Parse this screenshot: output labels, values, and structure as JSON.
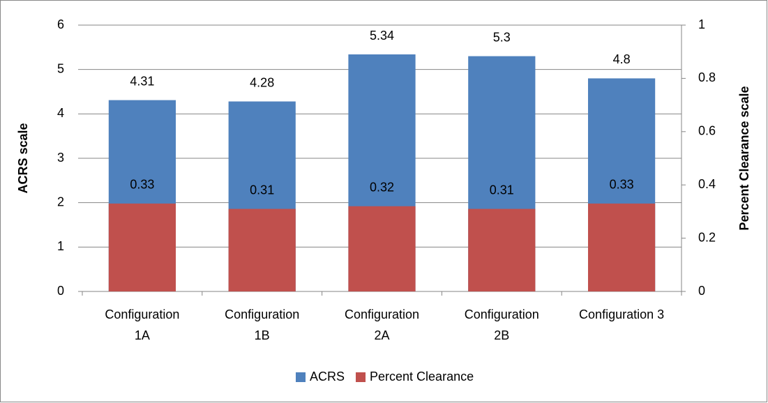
{
  "chart_data": {
    "type": "bar",
    "categories": [
      "Configuration\n1A",
      "Configuration\n1B",
      "Configuration\n2A",
      "Configuration\n2B",
      "Configuration 3"
    ],
    "series": [
      {
        "name": "ACRS",
        "color": "#4f81bd",
        "values": [
          4.31,
          4.28,
          5.34,
          5.3,
          4.8
        ]
      },
      {
        "name": "Percent Clearance",
        "color": "#c0504d",
        "axis": "y2",
        "values": [
          0.33,
          0.31,
          0.32,
          0.31,
          0.33
        ]
      }
    ],
    "ylabel": "ACRS scale",
    "y2label": "Percent Clearance scale",
    "ylim": [
      0,
      6
    ],
    "yticks": [
      0,
      1,
      2,
      3,
      4,
      5,
      6
    ],
    "y2lim": [
      0,
      1
    ],
    "y2ticks": [
      0,
      0.2,
      0.4,
      0.6,
      0.8,
      1
    ],
    "grid": true,
    "legend": "bottom"
  }
}
